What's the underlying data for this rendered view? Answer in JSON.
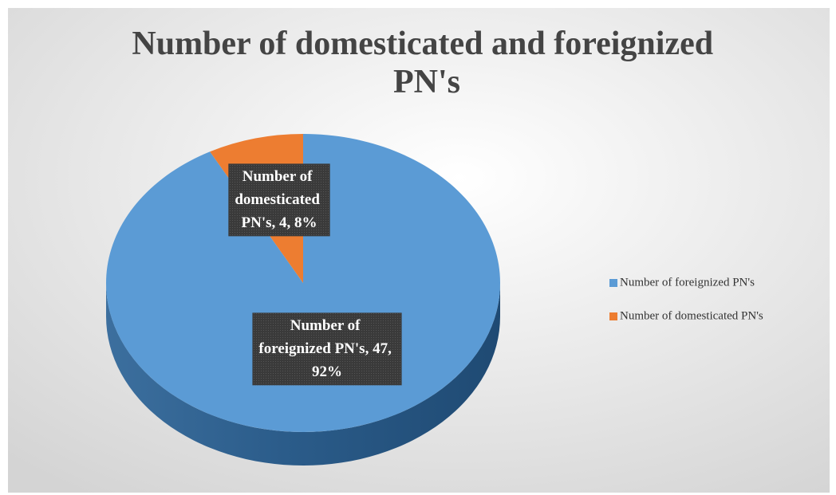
{
  "chart_data": {
    "type": "pie",
    "title": "Number of domesticated and foreignized PN's",
    "categories": [
      "Number of foreignized PN's",
      "Number of domesticated PN's"
    ],
    "values": [
      47,
      4
    ],
    "value_labels": [
      "Number of foreignized PN's, 47, 92%",
      "Number of domesticated PN's, 4, 8%"
    ],
    "colors": [
      "#5b9bd5",
      "#ed7d31"
    ],
    "legend": "right",
    "three_d": true
  }
}
